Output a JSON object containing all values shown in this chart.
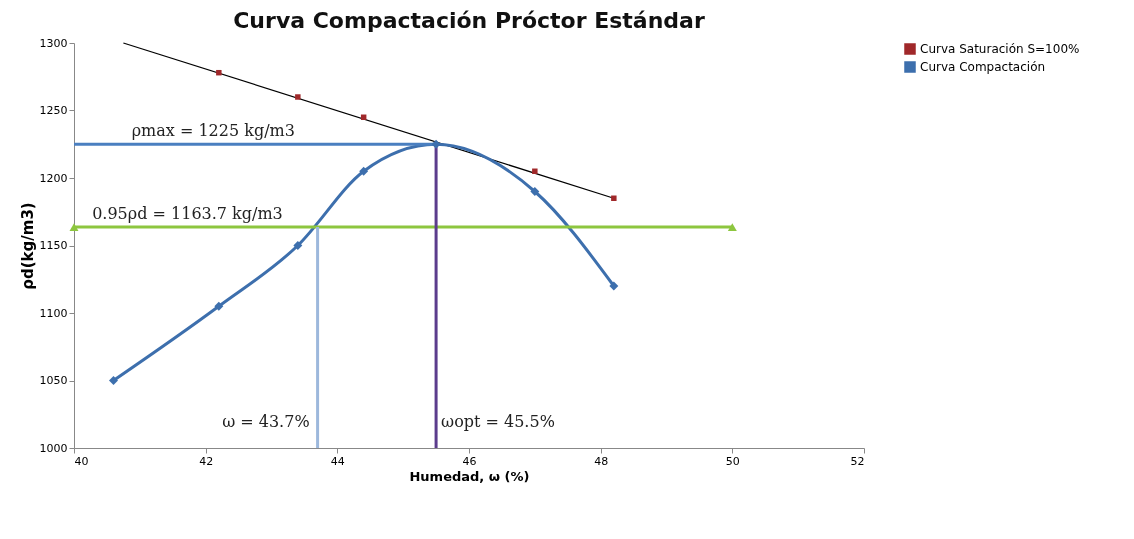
{
  "chart_data": {
    "type": "line",
    "title": "Curva Compactación Próctor Estándar",
    "xlabel": "Humedad,  ω (%)",
    "ylabel": "ρd(kg/m3)",
    "xlim": [
      40,
      52
    ],
    "xticks": [
      40,
      42,
      44,
      46,
      48,
      50,
      52
    ],
    "ylim": [
      1000,
      1300
    ],
    "yticks": [
      1000,
      1050,
      1100,
      1150,
      1200,
      1250,
      1300
    ],
    "grid": false,
    "legend": "right",
    "series": [
      {
        "color": "#000000",
        "x": [
          40.75,
          48.2
        ],
        "values": [
          1300,
          1185
        ],
        "marker": "none"
      },
      {
        "type": "scatter",
        "name": "Curva Saturación S=100%",
        "color": "#a0282a",
        "marker": "square",
        "x": [
          42.2,
          43.4,
          44.4,
          47.0,
          48.2
        ],
        "values": [
          1278,
          1260,
          1245,
          1205,
          1185
        ]
      },
      {
        "name": "Curva Compactación",
        "color": "#3d6fad",
        "marker": "diamond",
        "x": [
          40.6,
          42.2,
          43.4,
          44.4,
          45.5,
          47.0,
          48.2
        ],
        "values": [
          1050,
          1105,
          1150,
          1205,
          1225,
          1190,
          1120
        ]
      },
      {
        "color": "#4a7fc0",
        "marker": "none",
        "x": [
          40,
          45.5
        ],
        "values": [
          1225,
          1225
        ]
      },
      {
        "color": "#8dc63f",
        "marker": "triangle",
        "x": [
          40,
          50
        ],
        "values": [
          1163.7,
          1163.7
        ]
      },
      {
        "color": "#9db8dc",
        "marker": "none",
        "x": [
          43.7,
          43.7
        ],
        "values": [
          1163.7,
          1000
        ]
      },
      {
        "color": "#5b3c8c",
        "marker": "none",
        "x": [
          45.5,
          45.5
        ],
        "values": [
          1225,
          1000
        ]
      }
    ],
    "annotations": [
      {
        "text": "ρmax = 1225 kg/m3",
        "x": 40.8,
        "y": 1225
      },
      {
        "text": "0.95ρd = 1163.7 kg/m3",
        "x": 40.2,
        "y": 1163.7
      },
      {
        "text": "ω  = 43.7%",
        "x": 43.7,
        "y": 1010
      },
      {
        "text": "ωopt = 45.5%",
        "x": 45.5,
        "y": 1010
      }
    ]
  }
}
